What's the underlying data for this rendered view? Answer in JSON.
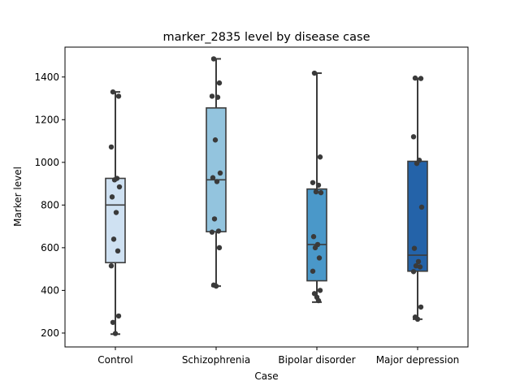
{
  "chart_data": {
    "type": "box",
    "title": "marker_2835 level by disease case",
    "xlabel": "Case",
    "ylabel": "Marker level",
    "ylim": [
      135,
      1540
    ],
    "yticks": [
      200,
      400,
      600,
      800,
      1000,
      1200,
      1400
    ],
    "categories": [
      "Control",
      "Schizophrenia",
      "Bipolar disorder",
      "Major depression"
    ],
    "colors": [
      "#cfe1f2",
      "#93c4de",
      "#4a98c9",
      "#2463a9"
    ],
    "boxes": [
      {
        "category": "Control",
        "q1": 530,
        "median": 800,
        "q3": 925,
        "whisker_low": 195,
        "whisker_high": 1330
      },
      {
        "category": "Schizophrenia",
        "q1": 675,
        "median": 918,
        "q3": 1255,
        "whisker_low": 420,
        "whisker_high": 1485
      },
      {
        "category": "Bipolar disorder",
        "q1": 445,
        "median": 615,
        "q3": 875,
        "whisker_low": 345,
        "whisker_high": 1418
      },
      {
        "category": "Major depression",
        "q1": 490,
        "median": 565,
        "q3": 1005,
        "whisker_low": 265,
        "whisker_high": 1393
      }
    ],
    "points": [
      {
        "category": "Control",
        "values": [
          1330,
          1310,
          1072,
          925,
          918,
          885,
          838,
          765,
          640,
          585,
          515,
          280,
          250,
          198
        ]
      },
      {
        "category": "Schizophrenia",
        "values": [
          1485,
          1372,
          1310,
          1305,
          1105,
          950,
          928,
          910,
          735,
          678,
          673,
          600,
          425,
          420
        ]
      },
      {
        "category": "Bipolar disorder",
        "values": [
          1418,
          1025,
          905,
          893,
          862,
          858,
          652,
          615,
          600,
          552,
          490,
          400,
          385,
          368,
          352
        ]
      },
      {
        "category": "Major depression",
        "values": [
          1395,
          1393,
          1120,
          1010,
          995,
          790,
          597,
          535,
          515,
          510,
          488,
          322,
          275,
          265
        ]
      }
    ],
    "grid": false,
    "legend": "none"
  }
}
